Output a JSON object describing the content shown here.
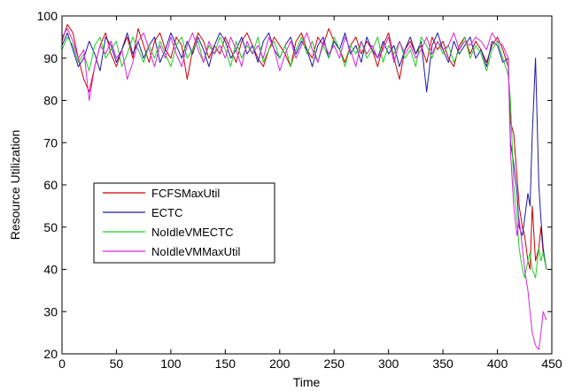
{
  "chart_data": {
    "type": "line",
    "title": "",
    "xlabel": "Time",
    "ylabel": "Resource Utilization",
    "xlim": [
      0,
      450
    ],
    "ylim": [
      20,
      100
    ],
    "xticks": [
      0,
      50,
      100,
      150,
      200,
      250,
      300,
      350,
      400,
      450
    ],
    "yticks": [
      20,
      30,
      40,
      50,
      60,
      70,
      80,
      90,
      100
    ],
    "grid": false,
    "legend_position": "center-left",
    "series": [
      {
        "name": "FCFSMaxUtil",
        "color": "#cc0000",
        "x": [
          0,
          5,
          10,
          15,
          20,
          25,
          30,
          35,
          40,
          45,
          50,
          55,
          60,
          65,
          70,
          75,
          80,
          85,
          90,
          95,
          100,
          105,
          110,
          115,
          120,
          125,
          130,
          135,
          140,
          145,
          150,
          155,
          160,
          165,
          170,
          175,
          180,
          185,
          190,
          195,
          200,
          205,
          210,
          215,
          220,
          225,
          230,
          235,
          240,
          245,
          250,
          255,
          260,
          265,
          270,
          275,
          280,
          285,
          290,
          295,
          300,
          305,
          310,
          315,
          320,
          325,
          330,
          335,
          340,
          345,
          350,
          355,
          360,
          365,
          370,
          375,
          380,
          385,
          390,
          395,
          400,
          405,
          410,
          412,
          415,
          418,
          420,
          423,
          425,
          428,
          430,
          432,
          435,
          438,
          440,
          442,
          445
        ],
        "y": [
          94,
          98,
          96,
          90,
          85,
          82,
          88,
          93,
          96,
          91,
          88,
          92,
          95,
          90,
          97,
          93,
          89,
          94,
          96,
          92,
          90,
          95,
          93,
          85,
          92,
          96,
          94,
          90,
          93,
          91,
          95,
          92,
          89,
          94,
          96,
          93,
          90,
          88,
          92,
          95,
          93,
          91,
          88,
          94,
          96,
          92,
          90,
          95,
          93,
          97,
          94,
          92,
          89,
          93,
          95,
          91,
          94,
          92,
          88,
          93,
          96,
          90,
          85,
          92,
          94,
          91,
          93,
          89,
          95,
          92,
          94,
          90,
          88,
          93,
          95,
          91,
          94,
          92,
          89,
          93,
          95,
          92,
          88,
          75,
          72,
          62,
          55,
          50,
          48,
          42,
          40,
          55,
          42,
          45,
          50,
          44,
          40
        ]
      },
      {
        "name": "ECTC",
        "color": "#1a1aaa",
        "x": [
          0,
          5,
          10,
          15,
          20,
          25,
          30,
          35,
          40,
          45,
          50,
          55,
          60,
          65,
          70,
          75,
          80,
          85,
          90,
          95,
          100,
          105,
          110,
          115,
          120,
          125,
          130,
          135,
          140,
          145,
          150,
          155,
          160,
          165,
          170,
          175,
          180,
          185,
          190,
          195,
          200,
          205,
          210,
          215,
          220,
          225,
          230,
          235,
          240,
          245,
          250,
          255,
          260,
          265,
          270,
          275,
          280,
          285,
          290,
          295,
          300,
          305,
          310,
          315,
          320,
          325,
          330,
          335,
          340,
          345,
          350,
          355,
          360,
          365,
          370,
          375,
          380,
          385,
          390,
          395,
          400,
          405,
          410,
          412,
          415,
          418,
          420,
          423,
          425,
          428,
          430,
          432,
          435,
          438,
          440,
          442,
          445
        ],
        "y": [
          93,
          96,
          92,
          88,
          90,
          94,
          91,
          87,
          95,
          93,
          89,
          92,
          96,
          91,
          94,
          90,
          93,
          95,
          89,
          92,
          96,
          93,
          90,
          94,
          91,
          95,
          92,
          88,
          93,
          96,
          94,
          90,
          92,
          95,
          91,
          93,
          89,
          94,
          96,
          92,
          90,
          93,
          95,
          91,
          94,
          92,
          88,
          93,
          95,
          90,
          94,
          92,
          96,
          91,
          93,
          89,
          95,
          92,
          90,
          94,
          91,
          93,
          88,
          92,
          95,
          91,
          94,
          82,
          93,
          96,
          92,
          89,
          94,
          91,
          93,
          95,
          90,
          92,
          88,
          94,
          93,
          89,
          90,
          70,
          65,
          58,
          50,
          48,
          52,
          58,
          55,
          72,
          90,
          60,
          52,
          45,
          40
        ]
      },
      {
        "name": "NoIdleVMECTC",
        "color": "#22cc22",
        "x": [
          0,
          5,
          10,
          15,
          20,
          25,
          30,
          35,
          40,
          45,
          50,
          55,
          60,
          65,
          70,
          75,
          80,
          85,
          90,
          95,
          100,
          105,
          110,
          115,
          120,
          125,
          130,
          135,
          140,
          145,
          150,
          155,
          160,
          165,
          170,
          175,
          180,
          185,
          190,
          195,
          200,
          205,
          210,
          215,
          220,
          225,
          230,
          235,
          240,
          245,
          250,
          255,
          260,
          265,
          270,
          275,
          280,
          285,
          290,
          295,
          300,
          305,
          310,
          315,
          320,
          325,
          330,
          335,
          340,
          345,
          350,
          355,
          360,
          365,
          370,
          375,
          380,
          385,
          390,
          395,
          400,
          405,
          410,
          412,
          415,
          418,
          420,
          423,
          425,
          428,
          430,
          432,
          435,
          438,
          440,
          442,
          445
        ],
        "y": [
          92,
          95,
          93,
          89,
          91,
          87,
          93,
          95,
          90,
          92,
          94,
          88,
          91,
          95,
          92,
          89,
          93,
          90,
          94,
          91,
          88,
          93,
          95,
          90,
          92,
          94,
          89,
          93,
          91,
          95,
          92,
          88,
          94,
          90,
          93,
          91,
          95,
          89,
          92,
          94,
          90,
          93,
          88,
          92,
          95,
          91,
          94,
          89,
          93,
          90,
          95,
          92,
          88,
          93,
          91,
          94,
          90,
          92,
          95,
          89,
          93,
          91,
          94,
          90,
          92,
          88,
          95,
          93,
          90,
          94,
          91,
          93,
          89,
          92,
          95,
          90,
          93,
          91,
          87,
          92,
          94,
          90,
          86,
          80,
          60,
          52,
          45,
          40,
          38,
          42,
          44,
          40,
          38,
          45,
          42,
          44,
          40
        ]
      },
      {
        "name": "NoIdleVMMaxUtil",
        "color": "#dd22dd",
        "x": [
          0,
          5,
          10,
          15,
          20,
          25,
          30,
          35,
          40,
          45,
          50,
          55,
          60,
          65,
          70,
          75,
          80,
          85,
          90,
          95,
          100,
          105,
          110,
          115,
          120,
          125,
          130,
          135,
          140,
          145,
          150,
          155,
          160,
          165,
          170,
          175,
          180,
          185,
          190,
          195,
          200,
          205,
          210,
          215,
          220,
          225,
          230,
          235,
          240,
          245,
          250,
          255,
          260,
          265,
          270,
          275,
          280,
          285,
          290,
          295,
          300,
          305,
          310,
          315,
          320,
          325,
          330,
          335,
          340,
          345,
          350,
          355,
          360,
          365,
          370,
          375,
          380,
          385,
          390,
          395,
          400,
          405,
          410,
          412,
          415,
          418,
          420,
          423,
          425,
          428,
          430,
          432,
          435,
          438,
          440,
          442,
          445
        ],
        "y": [
          95,
          97,
          94,
          90,
          92,
          80,
          88,
          93,
          91,
          94,
          90,
          92,
          85,
          89,
          94,
          96,
          92,
          88,
          93,
          90,
          95,
          91,
          88,
          93,
          96,
          92,
          89,
          94,
          91,
          93,
          90,
          95,
          92,
          88,
          94,
          91,
          93,
          90,
          95,
          92,
          87,
          91,
          94,
          90,
          93,
          96,
          92,
          89,
          94,
          91,
          93,
          90,
          95,
          92,
          88,
          94,
          91,
          93,
          90,
          92,
          95,
          89,
          94,
          91,
          93,
          90,
          92,
          95,
          91,
          94,
          92,
          93,
          96,
          92,
          94,
          93,
          95,
          94,
          92,
          96,
          94,
          93,
          90,
          68,
          55,
          48,
          52,
          45,
          40,
          35,
          30,
          25,
          22,
          21,
          25,
          30,
          28
        ]
      }
    ]
  }
}
